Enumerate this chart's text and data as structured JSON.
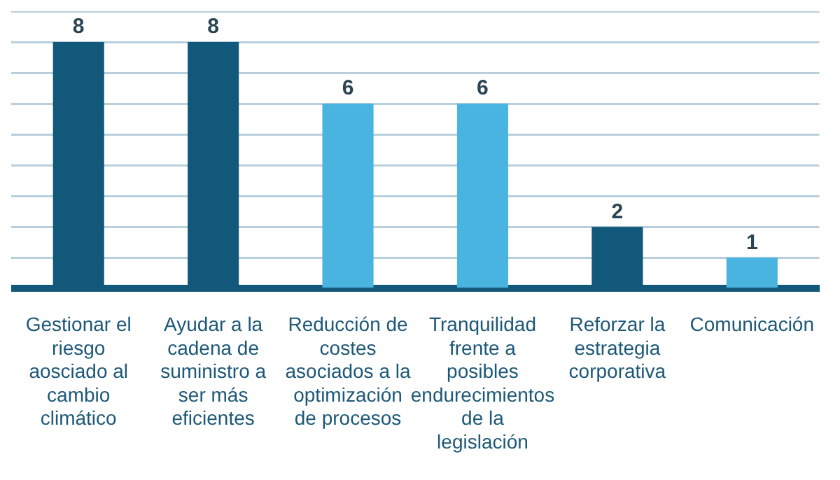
{
  "chart_data": {
    "type": "bar",
    "categories": [
      "Gestionar el riesgo aosciado al cambio climático",
      "Ayudar a la cadena de suministro a ser más eficientes",
      "Reducción de costes asociados a la optimización de procesos",
      "Tranquilidad frente a posibles endurecimientos de la legislación",
      "Reforzar la estrategia corporativa",
      "Comunicación"
    ],
    "values": [
      8,
      8,
      6,
      6,
      2,
      1
    ],
    "colors": [
      "#12587a",
      "#12587a",
      "#4ab4e0",
      "#4ab4e0",
      "#12587a",
      "#4ab4e0"
    ],
    "ylim": [
      0,
      9
    ],
    "yticks": [
      {
        "value": 0,
        "label": null
      },
      {
        "value": 1,
        "label": null
      },
      {
        "value": 2,
        "label": null
      },
      {
        "value": 3,
        "label": null
      },
      {
        "value": 4,
        "label": null
      },
      {
        "value": 5,
        "label": null
      },
      {
        "value": 6,
        "label": null
      },
      {
        "value": 7,
        "label": null
      },
      {
        "value": 8,
        "label": null
      },
      {
        "value": 9,
        "label": null
      }
    ],
    "grid": "y",
    "tick_labels": "x",
    "data_labels": true,
    "legend": false
  }
}
